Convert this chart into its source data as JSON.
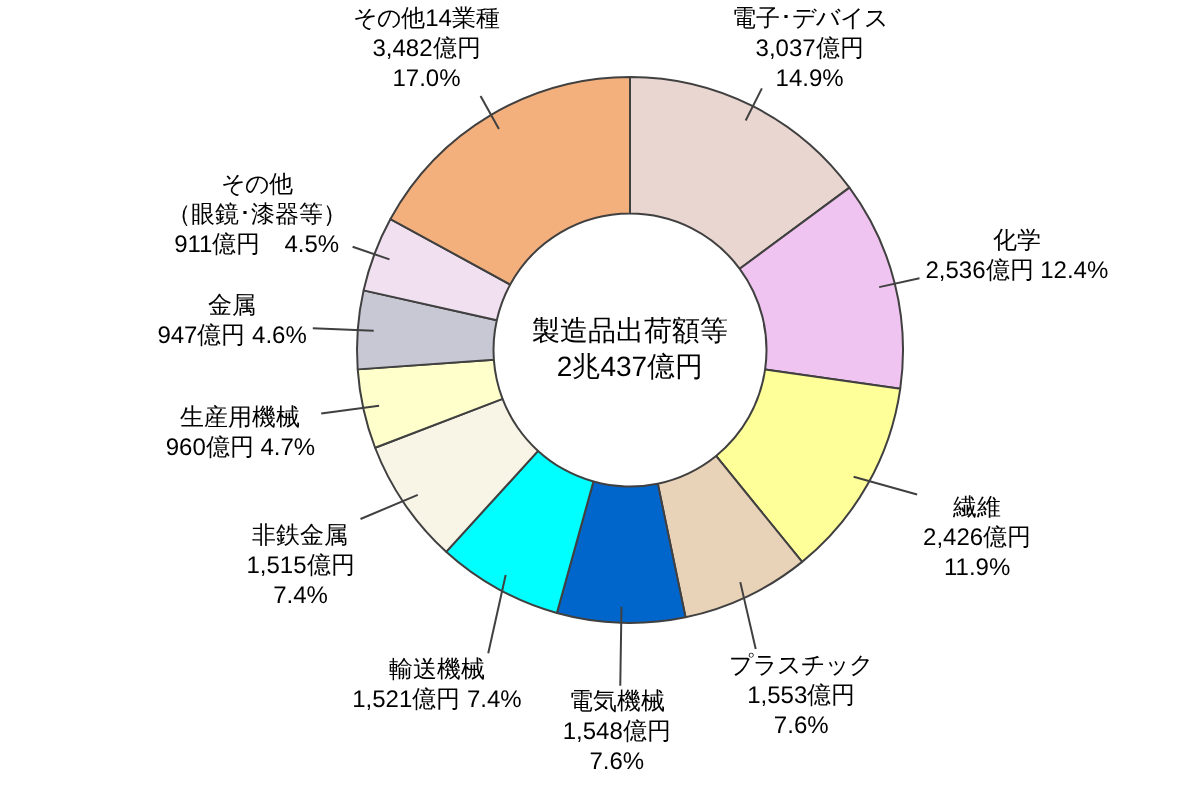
{
  "chart_data": {
    "type": "donut",
    "categories": [
      "電子･デバイス",
      "化学",
      "繊維",
      "プラスチック",
      "電気機械",
      "輸送機械",
      "非鉄金属",
      "生産用機械",
      "金属",
      "その他（眼鏡･漆器等）",
      "その他14業種"
    ],
    "values": [
      3037,
      2536,
      2426,
      1553,
      1548,
      1521,
      1515,
      960,
      947,
      911,
      3482
    ],
    "colors": [
      "#ead6d0",
      "#f0c4f0",
      "#ffff99",
      "#e8d2b8",
      "#0066cc",
      "#00ffff",
      "#f8f4e6",
      "#ffffcc",
      "#c8c8d4",
      "#f0e0f0",
      "#f4b07c"
    ],
    "value_labels": [
      "3,037億円\n14.9%",
      "2,536億円 12.4%",
      "2,426億円\n11.9%",
      "1,553億円\n7.6%",
      "1,548億円\n7.6%",
      "1,521億円 7.4%",
      "1,515億円\n7.4%",
      "960億円 4.7%",
      "947億円 4.6%",
      "911億円　4.5%",
      "3,482億円\n17.0%"
    ],
    "annotations": [
      "製造品出荷額等",
      "2兆437億円"
    ]
  }
}
